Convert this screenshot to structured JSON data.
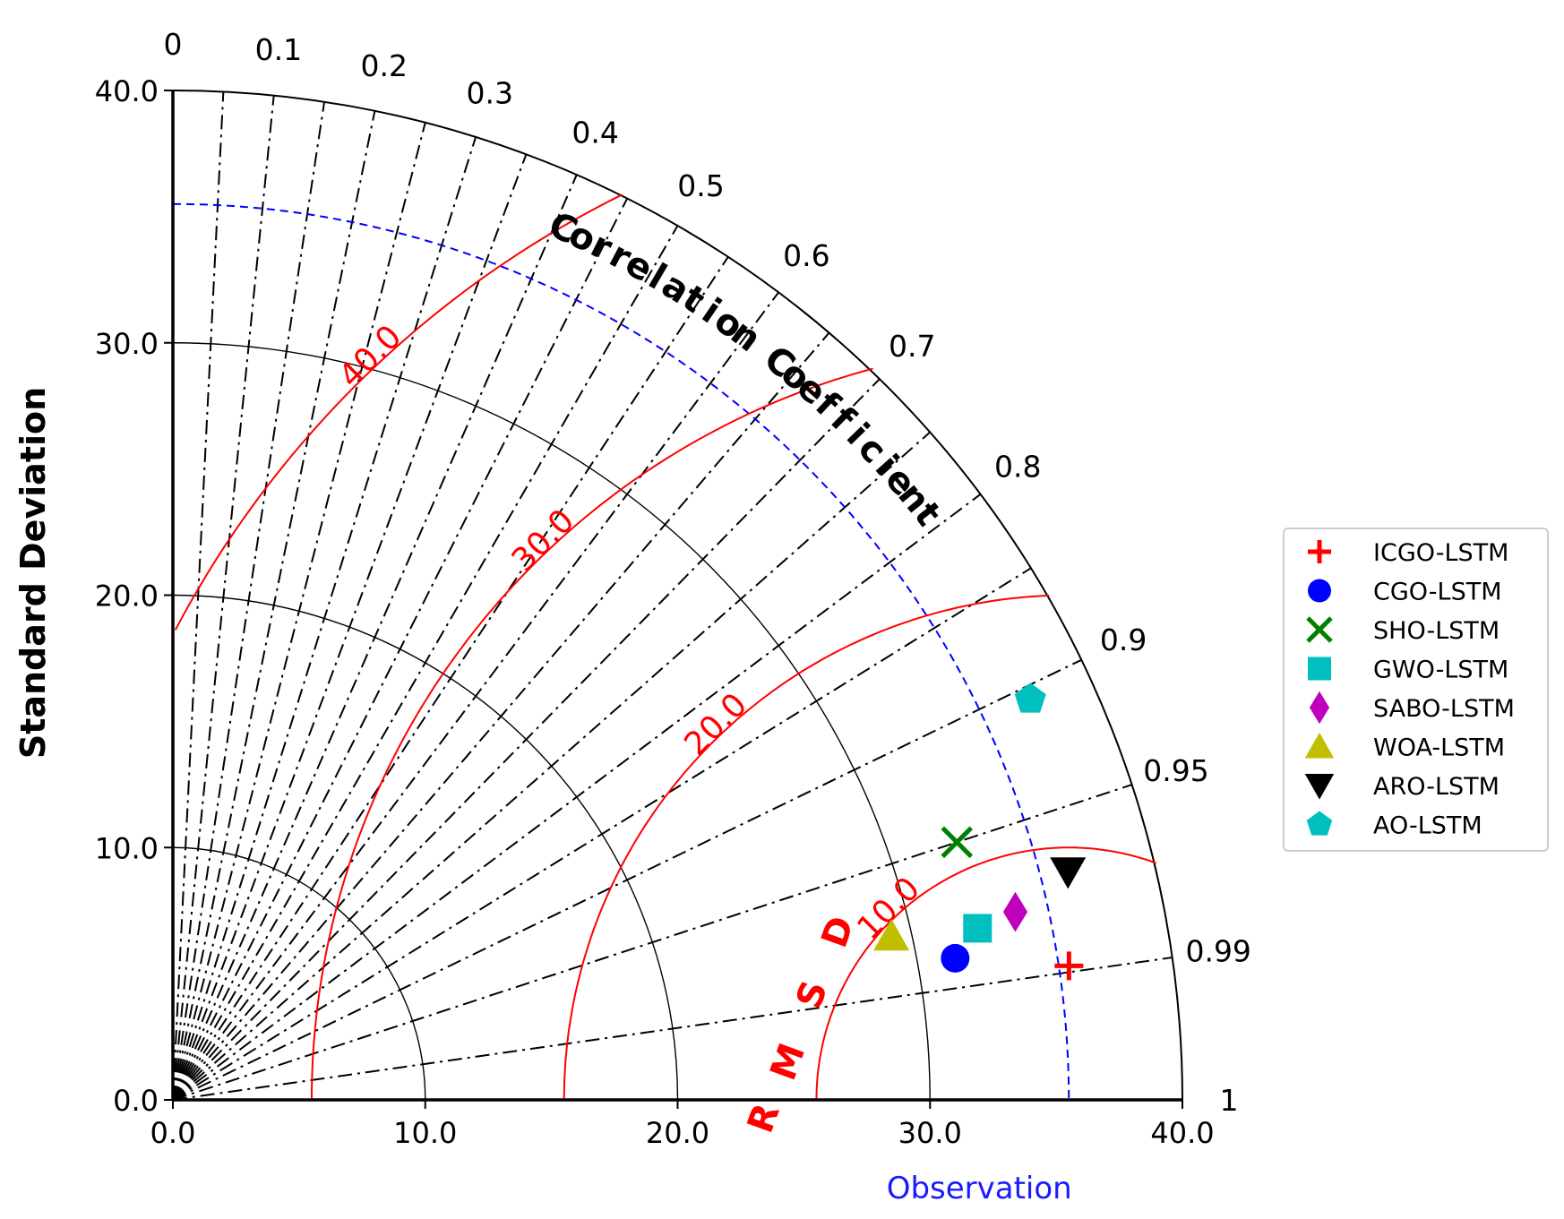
{
  "chart_data": {
    "type": "scatter",
    "subtype": "taylor-diagram",
    "ylabel": "Standard Deviation",
    "xlabel": "Observation",
    "std_ticks": [
      "0.0",
      "10.0",
      "20.0",
      "30.0",
      "40.0"
    ],
    "std_range": [
      0,
      40
    ],
    "corr_title": "Correlation Coefficient",
    "corr_ticks": [
      {
        "label": "0",
        "value": 0
      },
      {
        "label": "0.1",
        "value": 0.1
      },
      {
        "label": "0.2",
        "value": 0.2
      },
      {
        "label": "0.3",
        "value": 0.3
      },
      {
        "label": "0.4",
        "value": 0.4
      },
      {
        "label": "0.5",
        "value": 0.5
      },
      {
        "label": "0.6",
        "value": 0.6
      },
      {
        "label": "0.7",
        "value": 0.7
      },
      {
        "label": "0.8",
        "value": 0.8
      },
      {
        "label": "0.9",
        "value": 0.9
      },
      {
        "label": "0.95",
        "value": 0.95
      },
      {
        "label": "0.99",
        "value": 0.99
      },
      {
        "label": "1",
        "value": 1
      }
    ],
    "rmsd_title": "RMSD",
    "rmsd_contours": [
      {
        "label": "10.0",
        "value": 10
      },
      {
        "label": "20.0",
        "value": 20
      },
      {
        "label": "30.0",
        "value": 30
      },
      {
        "label": "40.0",
        "value": 40
      }
    ],
    "observation_std": 35.5,
    "legend_position": "right",
    "series": [
      {
        "name": "ICGO-LSTM",
        "marker": "plus",
        "color": "#ff0000",
        "std": 35.9,
        "corr": 0.989
      },
      {
        "name": "CGO-LSTM",
        "marker": "circle",
        "color": "#0000ff",
        "std": 31.5,
        "corr": 0.984
      },
      {
        "name": "SHO-LSTM",
        "marker": "x",
        "color": "#008000",
        "std": 32.7,
        "corr": 0.95
      },
      {
        "name": "GWO-LSTM",
        "marker": "square",
        "color": "#00bfbf",
        "std": 32.6,
        "corr": 0.978
      },
      {
        "name": "SABO-LSTM",
        "marker": "diamond",
        "color": "#bf00bf",
        "std": 34.2,
        "corr": 0.976
      },
      {
        "name": "WOA-LSTM",
        "marker": "triangle-up",
        "color": "#bfbf00",
        "std": 29.2,
        "corr": 0.975
      },
      {
        "name": "ARO-LSTM",
        "marker": "triangle-down",
        "color": "#000000",
        "std": 36.6,
        "corr": 0.969
      },
      {
        "name": "AO-LSTM",
        "marker": "pentagon",
        "color": "#00bfbf",
        "std": 37.5,
        "corr": 0.906
      }
    ]
  }
}
